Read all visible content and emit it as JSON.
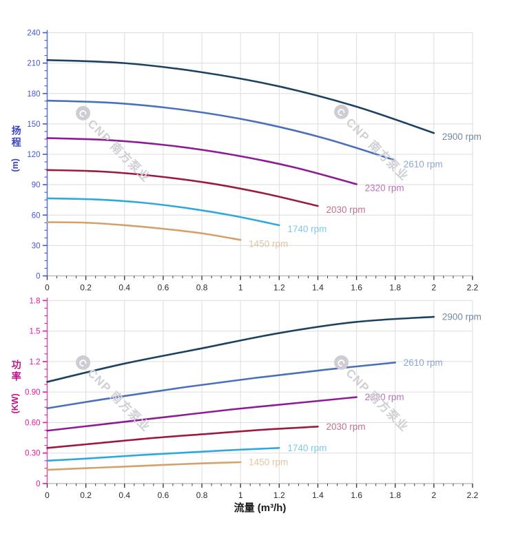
{
  "page": {
    "background": "#ffffff"
  },
  "watermark": {
    "badge": "C",
    "text": "CNP 南方泵业",
    "color": "#cfcfd6",
    "badge_bg": "#cdcdd3"
  },
  "x_axis": {
    "title": "流量 (m³/h)",
    "tick_values": [
      0,
      0.2,
      0.4,
      0.6,
      0.8,
      1,
      1.2,
      1.4,
      1.6,
      1.8,
      2,
      2.2
    ],
    "tick_labels": [
      "0",
      "0.2",
      "0.4",
      "0.6",
      "0.8",
      "1",
      "1.2",
      "1.4",
      "1.6",
      "1.8",
      "2",
      "2.2"
    ],
    "minor_tick_step": 0.05,
    "label_color": "#2b2b2b",
    "title_color": "#1a1a1a"
  },
  "chart_data": [
    {
      "type": "line",
      "title": "",
      "xlabel": "流量 (m³/h)",
      "ylabel": "扬程 (m)",
      "ylabel_main": "扬程",
      "ylabel_unit": "(m)",
      "xlim": [
        0,
        2.2
      ],
      "ylim": [
        0,
        240
      ],
      "grid": true,
      "legend_position": "curve-ends",
      "y_ticks": [
        0,
        30,
        60,
        90,
        120,
        150,
        180,
        210,
        240
      ],
      "y_tick_labels": [
        "0",
        "30",
        "60",
        "90",
        "120",
        "150",
        "180",
        "210",
        "240"
      ],
      "axis_color": "#5b6fd8",
      "tick_label_color": "#4456d6",
      "title_color": "#3a46c0",
      "series": [
        {
          "name": "2900 rpm",
          "rpm": 2900,
          "color": "#1b4163",
          "points": [
            [
              0,
              213
            ],
            [
              0.4,
              210
            ],
            [
              0.8,
              201
            ],
            [
              1.2,
              187
            ],
            [
              1.6,
              167
            ],
            [
              2.0,
              141
            ]
          ]
        },
        {
          "name": "2610 rpm",
          "rpm": 2610,
          "color": "#4a70bc",
          "points": [
            [
              0,
              173
            ],
            [
              0.36,
              170.5
            ],
            [
              0.72,
              163.5
            ],
            [
              1.08,
              152
            ],
            [
              1.44,
              135.5
            ],
            [
              1.8,
              114
            ]
          ]
        },
        {
          "name": "2320 rpm",
          "rpm": 2320,
          "color": "#8e1b96",
          "points": [
            [
              0,
              136
            ],
            [
              0.32,
              134
            ],
            [
              0.64,
              128.5
            ],
            [
              0.96,
              119.5
            ],
            [
              1.28,
              107
            ],
            [
              1.6,
              90.5
            ]
          ]
        },
        {
          "name": "2030 rpm",
          "rpm": 2030,
          "color": "#9c1a3e",
          "points": [
            [
              0,
              104.5
            ],
            [
              0.28,
              103
            ],
            [
              0.56,
              98.5
            ],
            [
              0.84,
              91.5
            ],
            [
              1.12,
              81.5
            ],
            [
              1.4,
              69
            ]
          ]
        },
        {
          "name": "1740 rpm",
          "rpm": 1740,
          "color": "#2fa8de",
          "points": [
            [
              0,
              76.5
            ],
            [
              0.24,
              75.5
            ],
            [
              0.48,
              72.5
            ],
            [
              0.72,
              67
            ],
            [
              0.96,
              59.5
            ],
            [
              1.2,
              50
            ]
          ]
        },
        {
          "name": "1450 rpm",
          "rpm": 1450,
          "color": "#d3a169",
          "points": [
            [
              0,
              53
            ],
            [
              0.2,
              52.5
            ],
            [
              0.4,
              50
            ],
            [
              0.6,
              46.5
            ],
            [
              0.8,
              42
            ],
            [
              1.0,
              35.5
            ]
          ]
        }
      ]
    },
    {
      "type": "line",
      "title": "",
      "xlabel": "流量 (m³/h)",
      "ylabel": "功率 (KW)",
      "ylabel_main": "功率",
      "ylabel_unit": "(KW)",
      "xlim": [
        0,
        2.2
      ],
      "ylim": [
        0,
        1.8
      ],
      "grid": true,
      "legend_position": "curve-ends",
      "y_ticks": [
        0,
        0.3,
        0.6,
        0.9,
        1.2,
        1.5,
        1.8
      ],
      "y_tick_labels": [
        "0",
        "0.30",
        "0.60",
        "0.90",
        "1.2",
        "1.5",
        "1.8"
      ],
      "axis_color": "#d455b0",
      "tick_label_color": "#e8189a",
      "title_color": "#c0128a",
      "series": [
        {
          "name": "2900 rpm",
          "rpm": 2900,
          "color": "#1b4163",
          "points": [
            [
              0,
              1.0
            ],
            [
              0.4,
              1.18
            ],
            [
              0.8,
              1.33
            ],
            [
              1.2,
              1.48
            ],
            [
              1.6,
              1.59
            ],
            [
              2.0,
              1.64
            ]
          ]
        },
        {
          "name": "2610 rpm",
          "rpm": 2610,
          "color": "#4a70bc",
          "points": [
            [
              0,
              0.74
            ],
            [
              0.36,
              0.85
            ],
            [
              0.72,
              0.95
            ],
            [
              1.08,
              1.04
            ],
            [
              1.44,
              1.12
            ],
            [
              1.8,
              1.19
            ]
          ]
        },
        {
          "name": "2320 rpm",
          "rpm": 2320,
          "color": "#8e1b96",
          "points": [
            [
              0,
              0.52
            ],
            [
              0.32,
              0.59
            ],
            [
              0.64,
              0.66
            ],
            [
              0.96,
              0.73
            ],
            [
              1.28,
              0.79
            ],
            [
              1.6,
              0.85
            ]
          ]
        },
        {
          "name": "2030 rpm",
          "rpm": 2030,
          "color": "#9c1a3e",
          "points": [
            [
              0,
              0.35
            ],
            [
              0.28,
              0.4
            ],
            [
              0.56,
              0.45
            ],
            [
              0.84,
              0.49
            ],
            [
              1.12,
              0.53
            ],
            [
              1.4,
              0.56
            ]
          ]
        },
        {
          "name": "1740 rpm",
          "rpm": 1740,
          "color": "#2fa8de",
          "points": [
            [
              0,
              0.225
            ],
            [
              0.24,
              0.25
            ],
            [
              0.48,
              0.28
            ],
            [
              0.72,
              0.305
            ],
            [
              0.96,
              0.33
            ],
            [
              1.2,
              0.35
            ]
          ]
        },
        {
          "name": "1450 rpm",
          "rpm": 1450,
          "color": "#d3a169",
          "points": [
            [
              0,
              0.135
            ],
            [
              0.25,
              0.155
            ],
            [
              0.5,
              0.175
            ],
            [
              0.75,
              0.195
            ],
            [
              1.0,
              0.21
            ]
          ]
        }
      ]
    }
  ]
}
